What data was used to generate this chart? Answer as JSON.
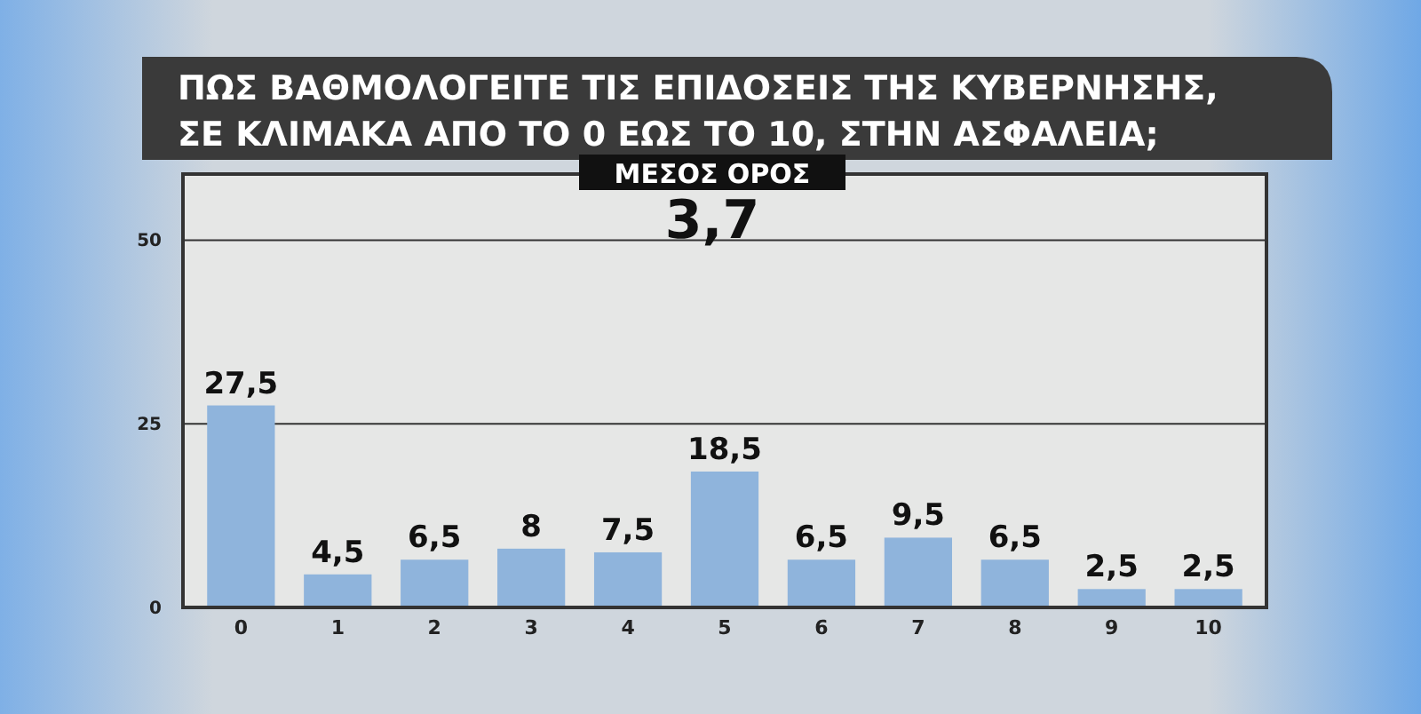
{
  "chart_data": {
    "type": "bar",
    "title": "ΠΩΣ ΒΑΘΜΟΛΟΓΕΙΤΕ ΤΙΣ ΕΠΙΔΟΣΕΙΣ ΤΗΣ ΚΥΒΕΡΝΗΣΗΣ,\nΣΕ ΚΛΙΜΑΚΑ ΑΠΟ ΤΟ 0 ΕΩΣ ΤΟ 10, ΣΤΗΝ ΑΣΦΑΛΕΙΑ;",
    "subtitle": "ΜΕΣΟΣ ΟΡΟΣ",
    "annotations": [
      "3,7"
    ],
    "categories": [
      "0",
      "1",
      "2",
      "3",
      "4",
      "5",
      "6",
      "7",
      "8",
      "9",
      "10"
    ],
    "values": [
      27.5,
      4.5,
      6.5,
      8,
      7.5,
      18.5,
      6.5,
      9.5,
      6.5,
      2.5,
      2.5
    ],
    "value_labels": [
      "27,5",
      "4,5",
      "6,5",
      "8",
      "7,5",
      "18,5",
      "6,5",
      "9,5",
      "6,5",
      "2,5",
      "2,5"
    ],
    "color": "#8fb4dc",
    "ylim": [
      0,
      59
    ],
    "yticks": [
      0,
      25,
      50
    ],
    "grid": "y"
  }
}
